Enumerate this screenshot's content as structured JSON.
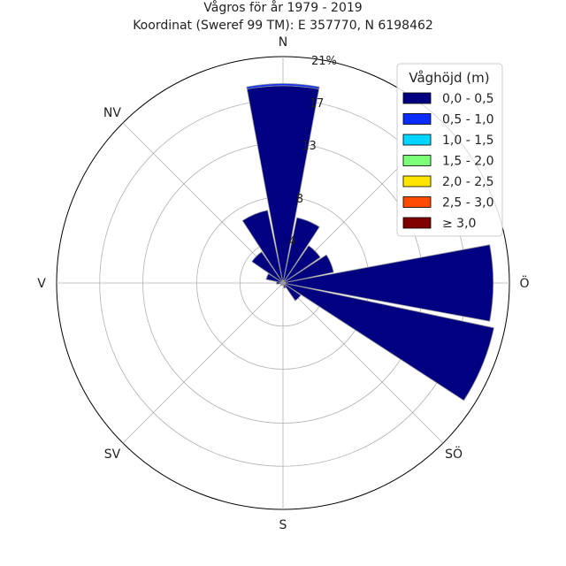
{
  "chart_data": {
    "type": "polar-bar",
    "title": "Vågros för år 1979 - 2019",
    "subtitle": "Koordinat (Sweref 99 TM): E 357770, N 6198462",
    "direction_labels": [
      "N",
      "NV",
      "V",
      "SV",
      "S",
      "SÖ",
      "Ö"
    ],
    "radial_ticks": [
      "4",
      "8",
      "13",
      "17",
      "21%"
    ],
    "radial_tick_values": [
      4,
      8,
      13,
      17,
      21
    ],
    "rmax": 21,
    "grid": true,
    "legend": {
      "title": "Våghöjd (m)",
      "placement": "top-right",
      "entries": [
        "0,0 - 0,5",
        "0,5 - 1,0",
        "1,0 - 1,5",
        "1,5 - 2,0",
        "2,0 - 2,5",
        "2,5 - 3,0",
        "≥ 3,0"
      ],
      "colors": [
        "#000080",
        "#0a2cff",
        "#00d5ff",
        "#7cff79",
        "#ffe600",
        "#ff4a00",
        "#800000"
      ]
    },
    "sectors_deg": [
      0,
      22.5,
      45,
      67.5,
      90,
      112.5,
      135,
      157.5,
      180,
      202.5,
      225,
      247.5,
      270,
      292.5,
      315,
      337.5
    ],
    "series": [
      {
        "name": "0,0 - 0,5",
        "values": [
          18.3,
          6.2,
          4.2,
          4.8,
          19.5,
          20.0,
          2.0,
          0.5,
          0.2,
          0.2,
          0.3,
          0.2,
          0.6,
          1.6,
          3.5,
          6.9
        ]
      },
      {
        "name": "0,5 - 1,0",
        "values": [
          0.2,
          0,
          0,
          0,
          0,
          0,
          0,
          0,
          0,
          0,
          0,
          0,
          0,
          0,
          0,
          0
        ]
      }
    ]
  }
}
